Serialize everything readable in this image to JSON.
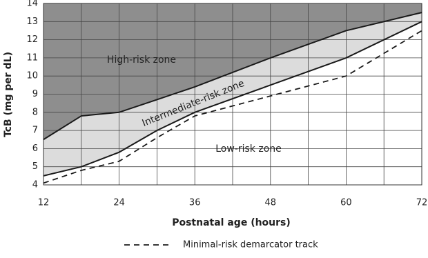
{
  "chart_data": {
    "type": "line",
    "xlabel": "Postnatal age (hours)",
    "ylabel": "TcB (mg per dL)",
    "x": [
      12,
      18,
      24,
      30,
      36,
      48,
      60,
      72
    ],
    "xlim": [
      12,
      72
    ],
    "xticks": [
      12,
      24,
      36,
      48,
      60,
      72
    ],
    "x_minor_ticks": [
      18,
      30,
      42,
      54,
      66
    ],
    "ylim": [
      4,
      14
    ],
    "yticks": [
      4,
      5,
      6,
      7,
      8,
      9,
      10,
      11,
      12,
      13,
      14
    ],
    "grid": true,
    "zone_colors": [
      "#8e8e8e",
      "#dcdcdc",
      "#ffffff"
    ],
    "series": [
      {
        "color": "#1a1a1a",
        "dash": false,
        "values": [
          6.5,
          7.8,
          8.0,
          8.7,
          9.4,
          11.0,
          12.5,
          13.5
        ]
      },
      {
        "color": "#1a1a1a",
        "dash": false,
        "values": [
          4.5,
          5.0,
          5.8,
          7.0,
          8.0,
          9.5,
          11.0,
          13.0
        ]
      },
      {
        "name": "Minimal-risk demarcator track",
        "color": "#1a1a1a",
        "dash": true,
        "values": [
          4.1,
          4.8,
          5.3,
          6.6,
          7.8,
          8.9,
          10.0,
          12.5
        ]
      }
    ],
    "annotations": [
      "High-risk zone",
      "Intermediate-risk zone",
      "Low-risk zone"
    ],
    "legend": "bottom"
  }
}
